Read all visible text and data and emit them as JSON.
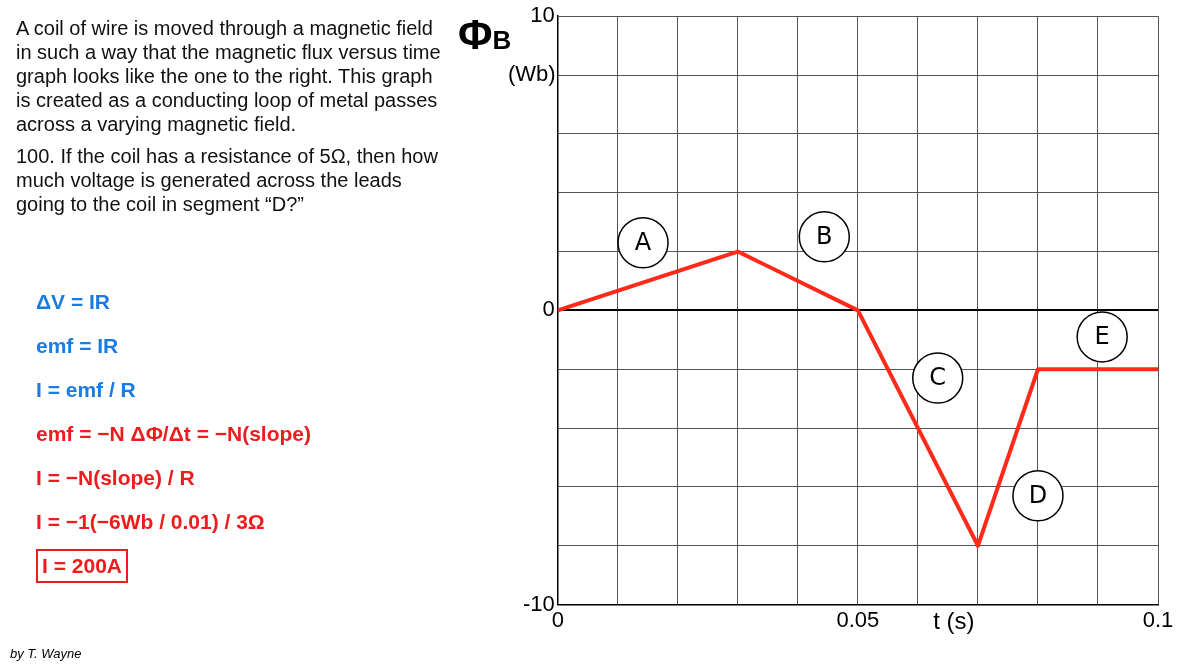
{
  "chart_data": {
    "type": "line",
    "title": "A  coil of wire is moved through a magnetic field in such a way that the magnetic flux versus time graph looks like the one to the right. This graph is created as a conducting loop of metal passes across a varying magnetic field.",
    "subtitle": "100. If the coil has a resistance of 5Ω, then how much voltage is generated across the leads going to the coil in segment “D?”",
    "xlabel": "t (s)",
    "ylabel": "Φ$_{B}$ (Wb)",
    "x": [
      0,
      0.03,
      0.05,
      0.07,
      0.08,
      0.1
    ],
    "series": [
      {
        "color": "#ff2a1a",
        "values": [
          0,
          2,
          0,
          -8,
          -2,
          -2
        ]
      }
    ],
    "xlim": [
      0,
      0.1
    ],
    "ylim": [
      -10,
      10
    ],
    "xticks": [
      0,
      {
        "value": 0.01,
        "label": null
      },
      {
        "value": 0.02,
        "label": null
      },
      {
        "value": 0.03,
        "label": null
      },
      {
        "value": 0.04,
        "label": null
      },
      0.05,
      {
        "value": 0.06,
        "label": null
      },
      {
        "value": 0.07,
        "label": null
      },
      {
        "value": 0.08,
        "label": null
      },
      {
        "value": 0.09,
        "label": null
      },
      0.1
    ],
    "yticks": [
      -10,
      {
        "value": -8,
        "label": null
      },
      {
        "value": -6,
        "label": null
      },
      {
        "value": -4,
        "label": null
      },
      {
        "value": -2,
        "label": null
      },
      0,
      {
        "value": 2,
        "label": null
      },
      {
        "value": 4,
        "label": null
      },
      {
        "value": 6,
        "label": null
      },
      {
        "value": 8,
        "label": null
      },
      10
    ],
    "grid": true,
    "marker": "none",
    "line_style": "solid",
    "annotations": [
      "A",
      "B",
      "C",
      "D",
      "E",
      "ΔV = IR",
      "emf = IR",
      "I = emf / R",
      "emf = −N ΔΦ/Δt = −N(slope)",
      "I = −N(slope) / R",
      "I = −1(−6Wb / 0.01) / 3Ω",
      "I = 200A",
      "by T. Wayne"
    ]
  }
}
